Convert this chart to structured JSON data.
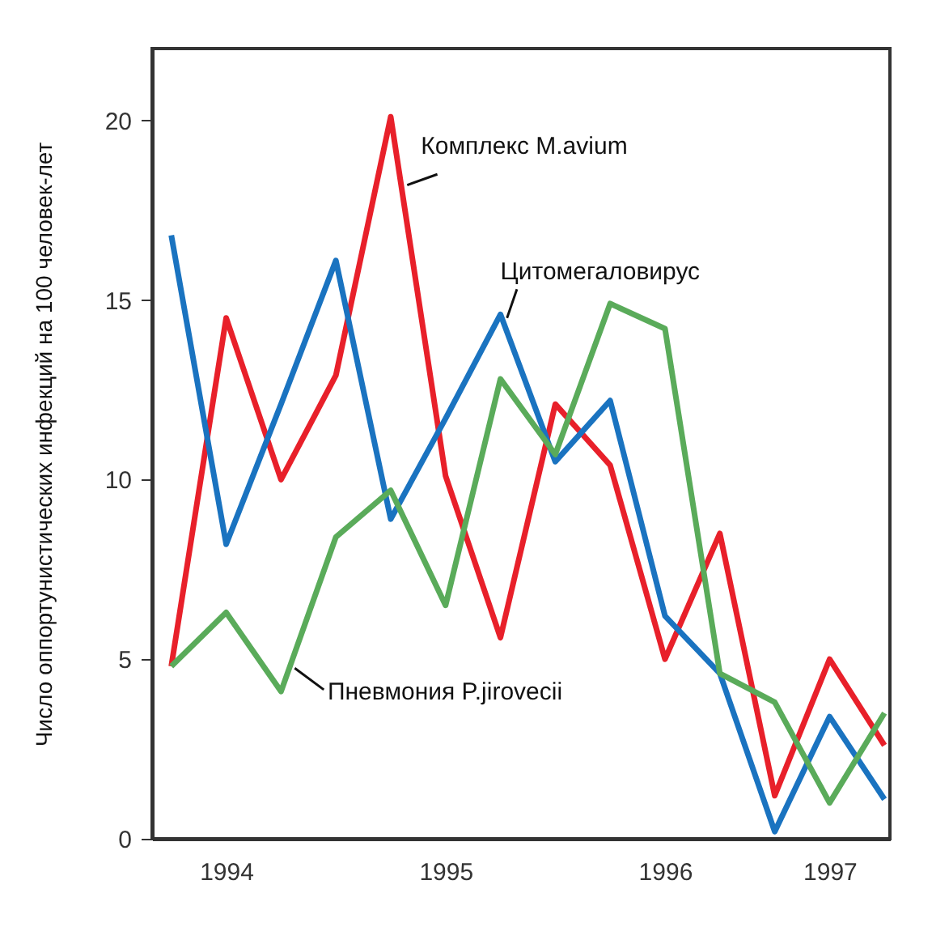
{
  "chart_data": {
    "type": "line",
    "ylabel": "Число оппортунистических инфекций на 100 человек-лет",
    "categories": [
      null,
      "1994",
      null,
      null,
      null,
      "1995",
      null,
      null,
      null,
      "1996",
      null,
      null,
      "1997",
      null
    ],
    "ylim": [
      0,
      22
    ],
    "yticks": [
      0,
      5,
      10,
      15,
      20
    ],
    "grid": false,
    "legend": false,
    "marker": "none",
    "line_style": "solid",
    "series": [
      {
        "name": "Комплекс M.avium",
        "color": "#e8202a",
        "values": [
          4.8,
          14.5,
          10.0,
          12.9,
          20.1,
          10.1,
          5.6,
          12.1,
          10.4,
          5.0,
          8.5,
          1.2,
          5.0,
          2.6
        ]
      },
      {
        "name": "Цитомегаловирус",
        "color": "#1a73c0",
        "values": [
          16.8,
          8.2,
          12.1,
          16.1,
          8.9,
          11.7,
          14.6,
          10.5,
          12.2,
          6.2,
          4.6,
          0.2,
          3.4,
          1.1
        ]
      },
      {
        "name": "Пневмония P.jirovecii",
        "color": "#5aab5a",
        "values": [
          4.8,
          6.3,
          4.1,
          8.4,
          9.7,
          6.5,
          12.8,
          10.7,
          14.9,
          14.2,
          4.6,
          3.8,
          1.0,
          3.5
        ]
      }
    ]
  }
}
